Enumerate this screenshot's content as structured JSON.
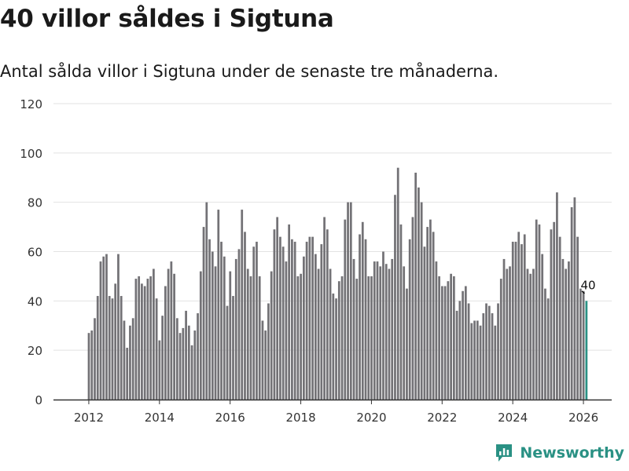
{
  "title": "40 villor såldes i Sigtuna",
  "subtitle": "Antal sålda villor i Sigtuna under de senaste tre månaderna.",
  "brand": {
    "name": "Newsworthy",
    "icon": "newsworthy-logo-icon"
  },
  "colors": {
    "bar": "#737276",
    "highlight": "#2a9184",
    "grid": "#e2e2e2",
    "axis": "#333333",
    "text": "#333333"
  },
  "chart_data": {
    "type": "bar",
    "title": "40 villor såldes i Sigtuna",
    "xlabel": "",
    "ylabel": "",
    "ylim": [
      0,
      120
    ],
    "yticks": [
      0,
      20,
      40,
      60,
      80,
      100,
      120
    ],
    "xticks": [
      {
        "label": "2012",
        "x": 2012.0
      },
      {
        "label": "2014",
        "x": 2014.0
      },
      {
        "label": "2016",
        "x": 2016.0
      },
      {
        "label": "2018",
        "x": 2018.0
      },
      {
        "label": "2020",
        "x": 2020.0
      },
      {
        "label": "2022",
        "x": 2022.0
      },
      {
        "label": "2024",
        "x": 2024.0
      },
      {
        "label": "2026",
        "x": 2026.0
      }
    ],
    "x_start": 2011.96,
    "period": "monthly",
    "grid": true,
    "last_label": "40",
    "values": [
      27,
      28,
      33,
      42,
      56,
      58,
      59,
      42,
      41,
      47,
      59,
      42,
      32,
      21,
      30,
      33,
      49,
      50,
      47,
      46,
      49,
      50,
      53,
      41,
      24,
      34,
      46,
      53,
      56,
      51,
      33,
      27,
      29,
      36,
      30,
      22,
      28,
      35,
      52,
      70,
      80,
      65,
      60,
      54,
      77,
      64,
      58,
      38,
      52,
      42,
      57,
      61,
      77,
      68,
      53,
      50,
      62,
      64,
      50,
      32,
      28,
      39,
      52,
      69,
      74,
      66,
      62,
      56,
      71,
      65,
      64,
      50,
      51,
      58,
      64,
      66,
      66,
      59,
      53,
      63,
      74,
      69,
      53,
      43,
      41,
      48,
      50,
      73,
      80,
      80,
      57,
      49,
      67,
      72,
      65,
      50,
      50,
      56,
      56,
      54,
      60,
      55,
      53,
      57,
      83,
      94,
      71,
      54,
      45,
      65,
      74,
      92,
      86,
      80,
      62,
      70,
      73,
      68,
      56,
      50,
      46,
      46,
      48,
      51,
      50,
      36,
      40,
      44,
      46,
      39,
      31,
      32,
      32,
      30,
      35,
      39,
      38,
      35,
      30,
      39,
      49,
      57,
      53,
      54,
      64,
      64,
      68,
      63,
      67,
      53,
      51,
      53,
      73,
      71,
      59,
      45,
      41,
      69,
      72,
      84,
      66,
      57,
      53,
      56,
      78,
      82,
      66,
      45,
      44,
      40
    ]
  }
}
